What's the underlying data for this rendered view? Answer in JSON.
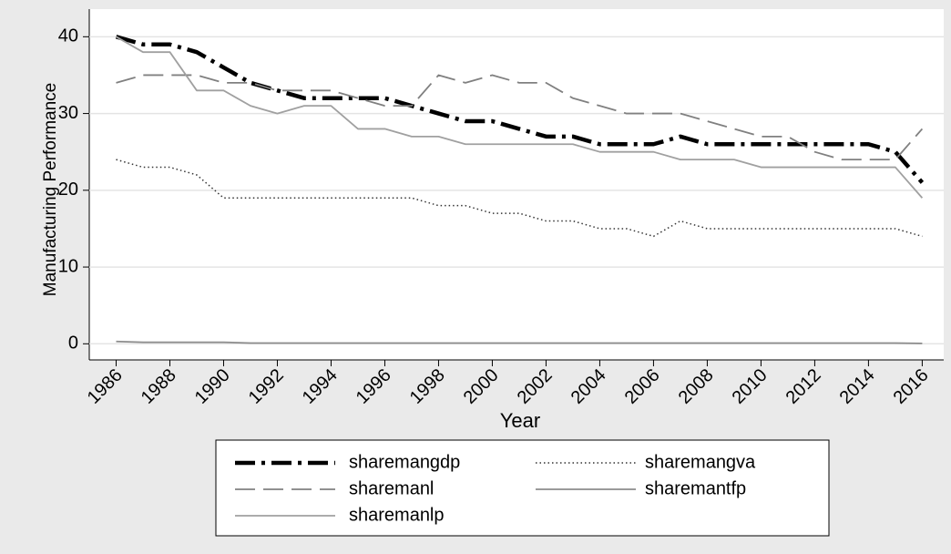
{
  "chart_data": {
    "type": "line",
    "x_label": "Year",
    "y_label": "Manufacturing Performance",
    "x": [
      1986,
      1987,
      1988,
      1989,
      1990,
      1991,
      1992,
      1993,
      1994,
      1995,
      1996,
      1997,
      1998,
      1999,
      2000,
      2001,
      2002,
      2003,
      2004,
      2005,
      2006,
      2007,
      2008,
      2009,
      2010,
      2011,
      2012,
      2013,
      2014,
      2015,
      2016
    ],
    "xlim": [
      1985,
      2016.8
    ],
    "xticks": [
      1986,
      1988,
      1990,
      1992,
      1994,
      1996,
      1998,
      2000,
      2002,
      2004,
      2006,
      2008,
      2010,
      2012,
      2014,
      2016
    ],
    "ylim": [
      -2.1,
      43.6
    ],
    "yticks": [
      0,
      10,
      20,
      30,
      40
    ],
    "grid": true,
    "series": [
      {
        "name": "sharemangdp",
        "color": "#000000",
        "line_style": "dash-dot",
        "values": [
          40,
          39,
          39,
          38,
          36,
          34,
          33,
          32,
          32,
          32,
          32,
          31,
          30,
          29,
          29,
          28,
          27,
          27,
          26,
          26,
          26,
          27,
          26,
          26,
          26,
          26,
          26,
          26,
          26,
          25,
          21
        ]
      },
      {
        "name": "sharemangva",
        "color": "#333333",
        "line_style": "dotted",
        "values": [
          24,
          23,
          23,
          22,
          19,
          19,
          19,
          19,
          19,
          19,
          19,
          19,
          18,
          18,
          17,
          17,
          16,
          16,
          15,
          15,
          14,
          16,
          15,
          15,
          15,
          15,
          15,
          15,
          15,
          15,
          14
        ]
      },
      {
        "name": "sharemanl",
        "color": "#808080",
        "line_style": "long-dash",
        "values": [
          34,
          35,
          35,
          35,
          34,
          34,
          33,
          33,
          33,
          32,
          31,
          31,
          35,
          34,
          35,
          34,
          34,
          32,
          31,
          30,
          30,
          30,
          29,
          28,
          27,
          27,
          25,
          24,
          24,
          24,
          28
        ]
      },
      {
        "name": "sharemantfp",
        "color": "#8c8c8c",
        "line_style": "solid",
        "values": [
          0.3,
          0.2,
          0.2,
          0.2,
          0.2,
          0.1,
          0.1,
          0.1,
          0.1,
          0.1,
          0.1,
          0.1,
          0.1,
          0.1,
          0.1,
          0.1,
          0.1,
          0.1,
          0.1,
          0.1,
          0.1,
          0.1,
          0.1,
          0.1,
          0.1,
          0.1,
          0.1,
          0.1,
          0.1,
          0.1,
          0.05
        ]
      },
      {
        "name": "sharemanlp",
        "color": "#a0a0a0",
        "line_style": "solid",
        "values": [
          40,
          38,
          38,
          33,
          33,
          31,
          30,
          31,
          31,
          28,
          28,
          27,
          27,
          26,
          26,
          26,
          26,
          26,
          25,
          25,
          25,
          24,
          24,
          24,
          23,
          23,
          23,
          23,
          23,
          23,
          19
        ]
      }
    ]
  }
}
